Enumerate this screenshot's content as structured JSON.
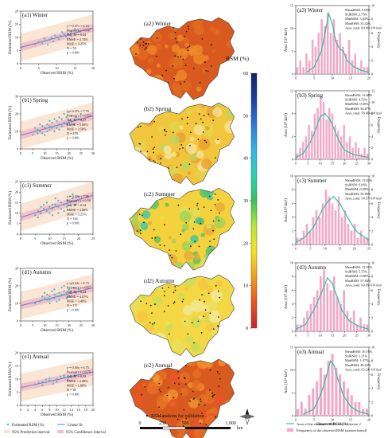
{
  "colorbar": {
    "title": "RSM (%)",
    "ticks": [
      0,
      10,
      20,
      30,
      40,
      50,
      60
    ],
    "colors": [
      "#c1272d",
      "#e8531f",
      "#f29b1d",
      "#f6e21c",
      "#b8e63a",
      "#37c25a",
      "#2bd1b8",
      "#35b5ea",
      "#2e78d8",
      "#1c3f9f",
      "#0e2468"
    ]
  },
  "scale": {
    "ticks": [
      "0",
      "250",
      "500",
      "1,000"
    ],
    "unit": "km"
  },
  "legends": {
    "col1": [
      "Estimated RSM (%)",
      "Linear fit",
      "95% Prediction interval",
      "95% Confidence interval"
    ],
    "map": "RSM stations for validation",
    "col3": [
      "Area of the estimated RSM with Criterion 2",
      "Frequency of the observed RSM (station-based)"
    ]
  },
  "chart_data": [
    {
      "type": "scatter",
      "title": "(a1) Winter",
      "xlabel": "Observed RSM (%)",
      "ylabel": "Estimated RSM (%)",
      "xlim": [
        0,
        20
      ],
      "ylim": [
        0,
        20
      ],
      "xticks": [
        0,
        5,
        10,
        15,
        20
      ],
      "yticks": [
        0,
        5,
        10,
        15,
        20
      ],
      "stats": [
        "y = 0.37x + 6.19",
        "Pearson's r = 0.47",
        "Adj. R² = 0.44",
        "RMSE = 3.74%",
        "MAE = 3.25%",
        "N = 50",
        "p < 0.001"
      ],
      "fit": [
        0.37,
        6.19
      ],
      "points": [
        [
          4,
          7.5
        ],
        [
          5,
          8.2
        ],
        [
          6,
          7.8
        ],
        [
          7,
          8.9
        ],
        [
          8,
          9.2
        ],
        [
          8.5,
          9.8
        ],
        [
          9,
          8.4
        ],
        [
          10,
          10.1
        ],
        [
          10.5,
          9.3
        ],
        [
          11,
          10.6
        ],
        [
          12,
          11.2
        ],
        [
          6.5,
          9.6
        ],
        [
          9.5,
          10.8
        ],
        [
          13,
          11.4
        ],
        [
          14,
          12.1
        ],
        [
          7.5,
          7.2
        ],
        [
          11.5,
          12.0
        ],
        [
          12.5,
          10.4
        ],
        [
          15,
          13.2
        ],
        [
          16,
          12.7
        ]
      ]
    },
    {
      "type": "scatter",
      "title": "(b1) Spring",
      "xlabel": "Observed RSM (%)",
      "ylabel": "Estimated RSM (%)",
      "xlim": [
        0,
        30
      ],
      "ylim": [
        0,
        30
      ],
      "xticks": [
        0,
        5,
        10,
        15,
        20,
        25,
        30
      ],
      "yticks": [
        0,
        10,
        20,
        30
      ],
      "stats": [
        "y = 0.37x + 7.79",
        "Pearson's r = 0.53",
        "Adj. R² = 0.27",
        "RMSE = 5.06%",
        "MAE = 3.58%",
        "N = 170",
        "p < 0.001"
      ],
      "fit": [
        0.37,
        7.79
      ],
      "points": [
        [
          5,
          8
        ],
        [
          7,
          11
        ],
        [
          8,
          10
        ],
        [
          9,
          13
        ],
        [
          10,
          12
        ],
        [
          11,
          14
        ],
        [
          12,
          11
        ],
        [
          13,
          15
        ],
        [
          14,
          13
        ],
        [
          15,
          16
        ],
        [
          16,
          14
        ],
        [
          17,
          17
        ],
        [
          18,
          15
        ],
        [
          19,
          18
        ],
        [
          20,
          16
        ],
        [
          21,
          19
        ],
        [
          22,
          14
        ],
        [
          6,
          12
        ],
        [
          9,
          9
        ],
        [
          12,
          16
        ],
        [
          15,
          12
        ],
        [
          18,
          20
        ],
        [
          11,
          10
        ],
        [
          14,
          17
        ],
        [
          16,
          11
        ],
        [
          20,
          21
        ],
        [
          23,
          18
        ],
        [
          8,
          14
        ],
        [
          10,
          8
        ],
        [
          13,
          12
        ],
        [
          17,
          13
        ],
        [
          19,
          14
        ],
        [
          24,
          17
        ],
        [
          25,
          20
        ],
        [
          7,
          9
        ],
        [
          12,
          13
        ],
        [
          14,
          10
        ],
        [
          16,
          18
        ]
      ]
    },
    {
      "type": "scatter",
      "title": "(c1) Summer",
      "xlabel": "Observed RSM (%)",
      "ylabel": "Estimated RSM (%)",
      "xlim": [
        0,
        25
      ],
      "ylim": [
        0,
        25
      ],
      "xticks": [
        0,
        5,
        10,
        15,
        20,
        25
      ],
      "yticks": [
        0,
        5,
        10,
        15,
        20,
        25
      ],
      "stats": [
        "y = 0.42x + 7.96",
        "Pearson's r = 0.58",
        "Adj. R² = 0.34",
        "RMSE = 3.80%",
        "MAE = 3.25%",
        "N = 165",
        "p < 0.001"
      ],
      "fit": [
        0.42,
        7.96
      ],
      "points": [
        [
          5,
          9
        ],
        [
          6,
          11
        ],
        [
          7,
          10
        ],
        [
          8,
          12
        ],
        [
          9,
          11
        ],
        [
          10,
          13
        ],
        [
          11,
          12
        ],
        [
          12,
          14
        ],
        [
          13,
          13
        ],
        [
          14,
          15
        ],
        [
          15,
          14
        ],
        [
          16,
          16
        ],
        [
          17,
          15
        ],
        [
          18,
          17
        ],
        [
          19,
          16
        ],
        [
          20,
          18
        ],
        [
          6,
          8
        ],
        [
          8,
          14
        ],
        [
          10,
          10
        ],
        [
          12,
          17
        ],
        [
          14,
          12
        ],
        [
          16,
          13
        ],
        [
          18,
          19
        ],
        [
          9,
          15
        ],
        [
          11,
          9
        ],
        [
          13,
          16
        ],
        [
          15,
          11
        ],
        [
          17,
          18
        ],
        [
          7,
          13
        ],
        [
          19,
          14
        ],
        [
          21,
          17
        ],
        [
          11,
          14
        ],
        [
          13,
          10
        ]
      ]
    },
    {
      "type": "scatter",
      "title": "(d1) Autumn",
      "xlabel": "Observed RSM (%)",
      "ylabel": "Estimated RSM (%)",
      "xlim": [
        0,
        30
      ],
      "ylim": [
        0,
        30
      ],
      "xticks": [
        0,
        5,
        10,
        15,
        20,
        25,
        30
      ],
      "yticks": [
        0,
        10,
        20,
        30
      ],
      "stats": [
        "y = 0.34x + 8.73",
        "Pearson's r = 0.67",
        "Adj. R² = 0.44",
        "RMSE = 4.07%",
        "MAE = 3.40%",
        "N = 171",
        "p < 0.001"
      ],
      "fit": [
        0.34,
        8.73
      ],
      "points": [
        [
          6,
          10
        ],
        [
          8,
          11
        ],
        [
          9,
          12
        ],
        [
          10,
          13
        ],
        [
          11,
          12
        ],
        [
          12,
          14
        ],
        [
          13,
          13
        ],
        [
          14,
          15
        ],
        [
          15,
          14
        ],
        [
          16,
          16
        ],
        [
          17,
          15
        ],
        [
          18,
          17
        ],
        [
          19,
          16
        ],
        [
          20,
          18
        ],
        [
          21,
          17
        ],
        [
          22,
          19
        ],
        [
          10,
          16
        ],
        [
          12,
          10
        ],
        [
          14,
          18
        ],
        [
          16,
          12
        ],
        [
          18,
          20
        ],
        [
          20,
          14
        ],
        [
          11,
          15
        ],
        [
          13,
          17
        ],
        [
          15,
          11
        ],
        [
          17,
          19
        ],
        [
          19,
          13
        ],
        [
          21,
          21
        ],
        [
          23,
          16
        ],
        [
          9,
          14
        ],
        [
          24,
          18
        ],
        [
          12,
          12
        ],
        [
          14,
          13
        ],
        [
          16,
          14
        ],
        [
          18,
          15
        ]
      ]
    },
    {
      "type": "scatter",
      "title": "(e1) Annual",
      "xlabel": "Observed RSM (%)",
      "ylabel": "Estimated RSM (%)",
      "xlim": [
        0,
        20
      ],
      "ylim": [
        0,
        20
      ],
      "xticks": [
        0,
        2,
        4,
        6,
        8,
        10,
        12,
        14,
        16,
        18,
        20
      ],
      "yticks": [
        0,
        5,
        10,
        15,
        20
      ],
      "stats": [
        "y = 0.30x + 6.75",
        "Pearson's r = 0.75",
        "Adj. R² = 0.52",
        "RMSE = 2.08%",
        "MAE = 1.80%",
        "N = 49",
        "p < 0.001"
      ],
      "fit": [
        0.3,
        6.75
      ],
      "points": [
        [
          4,
          8
        ],
        [
          5,
          8.5
        ],
        [
          6,
          9
        ],
        [
          7,
          8.7
        ],
        [
          8,
          9.5
        ],
        [
          9,
          9.3
        ],
        [
          10,
          10
        ],
        [
          11,
          10.2
        ],
        [
          12,
          10.8
        ],
        [
          13,
          10.6
        ],
        [
          14,
          11.2
        ],
        [
          6,
          7.6
        ],
        [
          8,
          10.4
        ],
        [
          10,
          9
        ],
        [
          12,
          11.5
        ],
        [
          9,
          8.2
        ],
        [
          11,
          11
        ],
        [
          13,
          9.8
        ],
        [
          7,
          9.9
        ],
        [
          15,
          11.6
        ]
      ]
    },
    {
      "type": "map",
      "title": "(a2) Winter"
    },
    {
      "type": "map",
      "title": "(b2) Spring"
    },
    {
      "type": "map",
      "title": "(c2) Summer"
    },
    {
      "type": "map",
      "title": "(d2) Autumn"
    },
    {
      "type": "map",
      "title": "(e2) Annual"
    },
    {
      "type": "bar",
      "title": "(a3) Winter",
      "xlabel": "",
      "ylabel": "Area (10⁴ km²)",
      "y2label": "Frequency",
      "xlim": [
        0,
        20
      ],
      "xticks": [
        0,
        5,
        10,
        15,
        20
      ],
      "ylim": [
        0,
        15
      ],
      "yticks": [
        0,
        5,
        10,
        15
      ],
      "y2lim": [
        0,
        10
      ],
      "y2ticks": [
        0,
        2,
        4,
        6,
        8,
        10
      ],
      "stats": [
        "Mean_RSM: 9.09%",
        "Std_RSM: 2.76%",
        "Min_RSM: 3.45%",
        "Max_RSM: 33.42%",
        "Area_total: 60.90×10⁴ km²"
      ],
      "bars": [
        1,
        2,
        1,
        3,
        2,
        5,
        4,
        6,
        8,
        7,
        9,
        6,
        8,
        5,
        6,
        4,
        3,
        5,
        2,
        3,
        1,
        2,
        1,
        1
      ],
      "curve": [
        [
          3,
          0.4
        ],
        [
          5,
          1.5
        ],
        [
          7,
          5
        ],
        [
          8,
          9
        ],
        [
          9,
          13.2
        ],
        [
          10,
          11
        ],
        [
          11,
          7
        ],
        [
          12,
          5.5
        ],
        [
          13,
          5
        ],
        [
          14,
          3
        ],
        [
          16,
          1.5
        ],
        [
          18,
          0.8
        ],
        [
          20,
          0.4
        ]
      ]
    },
    {
      "type": "bar",
      "title": "(b3) Spring",
      "xlabel": "",
      "ylabel": "Area (10⁴ km²)",
      "y2label": "Frequency",
      "xlim": [
        0,
        30
      ],
      "xticks": [
        0,
        5,
        10,
        15,
        20,
        25,
        30
      ],
      "ylim": [
        0,
        12
      ],
      "yticks": [
        0,
        4,
        8,
        12
      ],
      "y2lim": [
        0,
        12
      ],
      "y2ticks": [
        0,
        2,
        4,
        6,
        8,
        10,
        12
      ],
      "stats": [
        "Mean_RSM: 11.68%",
        "Std_RSM: 4.52%",
        "Min_RSM: 0.00%",
        "Max_RSM: 56.87%",
        "Area_total: 58.00×10⁴ km²"
      ],
      "bars": [
        1,
        2,
        3,
        4,
        6,
        5,
        8,
        9,
        11,
        10,
        7,
        9,
        8,
        6,
        5,
        4,
        6,
        3,
        4,
        2,
        3,
        2,
        1,
        2,
        1
      ],
      "curve": [
        [
          0,
          0.3
        ],
        [
          3,
          1
        ],
        [
          6,
          3
        ],
        [
          8,
          5
        ],
        [
          10,
          7.5
        ],
        [
          12,
          8
        ],
        [
          14,
          7
        ],
        [
          16,
          5
        ],
        [
          18,
          3
        ],
        [
          20,
          1.6
        ],
        [
          24,
          0.8
        ],
        [
          30,
          0.3
        ]
      ]
    },
    {
      "type": "bar",
      "title": "(c3) Summer",
      "xlabel": "",
      "ylabel": "Area (10⁴ km²)",
      "y2label": "Frequency",
      "xlim": [
        0,
        25
      ],
      "xticks": [
        0,
        5,
        10,
        15,
        20,
        25
      ],
      "ylim": [
        0,
        10
      ],
      "yticks": [
        0,
        2,
        4,
        6,
        8,
        10
      ],
      "y2lim": [
        0,
        10
      ],
      "y2ticks": [
        0,
        2,
        4,
        6,
        8,
        10
      ],
      "stats": [
        "Mean_RSM: 13.82%",
        "Std_RSM: 6.06%",
        "Min_RSM: 0.00%",
        "Max_RSM: 58.89%",
        "Area_total: 54.57×10⁴ km²"
      ],
      "bars": [
        1,
        1,
        2,
        3,
        2,
        4,
        5,
        4,
        6,
        8,
        7,
        6,
        5,
        7,
        4,
        5,
        3,
        2,
        3,
        1,
        2,
        1,
        1
      ],
      "curve": [
        [
          0,
          0.3
        ],
        [
          3,
          1
        ],
        [
          6,
          2.5
        ],
        [
          9,
          5
        ],
        [
          11,
          6.3
        ],
        [
          13,
          7
        ],
        [
          15,
          6
        ],
        [
          17,
          4.5
        ],
        [
          19,
          3
        ],
        [
          21,
          1.8
        ],
        [
          25,
          0.6
        ]
      ]
    },
    {
      "type": "bar",
      "title": "(d3) Autumn",
      "xlabel": "",
      "ylabel": "Area (10⁴ km²)",
      "y2label": "Frequency",
      "xlim": [
        0,
        30
      ],
      "xticks": [
        0,
        5,
        10,
        15,
        20,
        25,
        30
      ],
      "ylim": [
        0,
        10
      ],
      "yticks": [
        0,
        2,
        4,
        6,
        8,
        10
      ],
      "y2lim": [
        0,
        10
      ],
      "y2ticks": [
        0,
        2,
        4,
        6,
        8,
        10
      ],
      "stats": [
        "Mean_RSM: 13.91%",
        "Std_RSM: 5.55%",
        "Min_RSM: 0.00%",
        "Max_RSM: 57.84%",
        "Area_total: 60.99×10⁴ km²"
      ],
      "bars": [
        1,
        1,
        2,
        3,
        4,
        5,
        6,
        8,
        9,
        7,
        6,
        8,
        5,
        4,
        6,
        3,
        2,
        3,
        1,
        2,
        1,
        1
      ],
      "curve": [
        [
          0,
          0.3
        ],
        [
          4,
          1
        ],
        [
          8,
          3.5
        ],
        [
          11,
          6
        ],
        [
          13,
          7.8
        ],
        [
          15,
          7
        ],
        [
          17,
          5
        ],
        [
          19,
          3
        ],
        [
          22,
          1.5
        ],
        [
          26,
          0.7
        ],
        [
          30,
          0.3
        ]
      ]
    },
    {
      "type": "bar",
      "title": "(e3) Annual",
      "xlabel": "Observed RSM (%)",
      "ylabel": "Area (10⁴ km²)",
      "y2label": "Frequency",
      "xlim": [
        0,
        20
      ],
      "xticks": [
        0,
        5,
        10,
        15,
        20
      ],
      "ylim": [
        0,
        15
      ],
      "yticks": [
        0,
        5,
        10,
        15
      ],
      "y2lim": [
        0,
        10
      ],
      "y2ticks": [
        0,
        2,
        4,
        6,
        8,
        10
      ],
      "stats": [
        "Mean_RSM: 10.16%",
        "Std_RSM: 2.21%",
        "Min_RSM: 1.47%",
        "Max_RSM: 49.92%",
        "Area_total: 63.24×10⁴ km²"
      ],
      "bars": [
        1,
        2,
        1,
        3,
        4,
        5,
        7,
        6,
        8,
        9,
        7,
        6,
        5,
        4,
        3,
        2,
        2,
        1,
        1
      ],
      "curve": [
        [
          2,
          0.3
        ],
        [
          5,
          1.5
        ],
        [
          7,
          5
        ],
        [
          8.5,
          9
        ],
        [
          9.5,
          12
        ],
        [
          10.5,
          11
        ],
        [
          11.5,
          8
        ],
        [
          13,
          4.5
        ],
        [
          15,
          2
        ],
        [
          17,
          1
        ],
        [
          20,
          0.3
        ]
      ]
    }
  ]
}
